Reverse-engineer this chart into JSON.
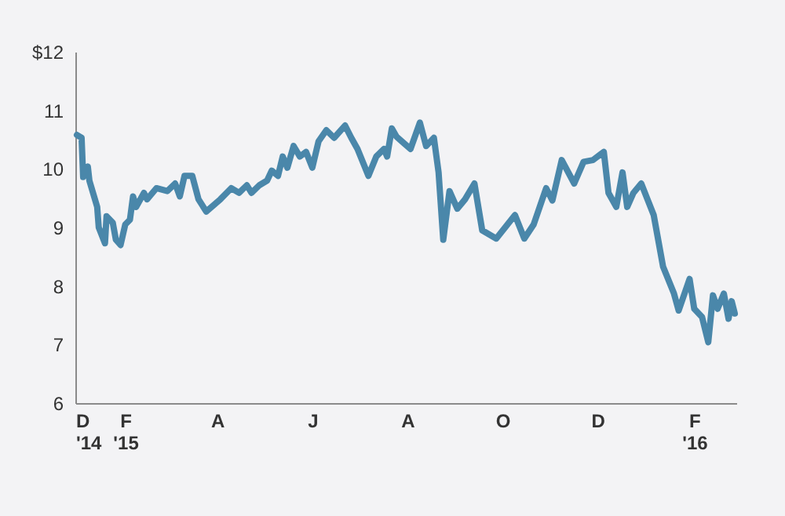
{
  "chart_data": {
    "type": "line",
    "x": [
      "2015-01-01",
      "2015-01-04",
      "2015-01-05",
      "2015-01-08",
      "2015-01-09",
      "2015-01-14",
      "2015-01-15",
      "2015-01-19",
      "2015-01-20",
      "2015-01-24",
      "2015-01-26",
      "2015-01-29",
      "2015-02-01",
      "2015-02-04",
      "2015-02-06",
      "2015-02-08",
      "2015-02-13",
      "2015-02-15",
      "2015-02-21",
      "2015-02-28",
      "2015-03-05",
      "2015-03-08",
      "2015-03-11",
      "2015-03-16",
      "2015-03-20",
      "2015-03-25",
      "2015-04-03",
      "2015-04-10",
      "2015-04-15",
      "2015-04-20",
      "2015-04-23",
      "2015-04-28",
      "2015-05-03",
      "2015-05-06",
      "2015-05-10",
      "2015-05-13",
      "2015-05-16",
      "2015-05-20",
      "2015-05-24",
      "2015-05-28",
      "2015-06-01",
      "2015-06-05",
      "2015-06-10",
      "2015-06-15",
      "2015-06-22",
      "2015-06-26",
      "2015-06-30",
      "2015-07-07",
      "2015-07-12",
      "2015-07-17",
      "2015-07-19",
      "2015-07-22",
      "2015-07-25",
      "2015-08-03",
      "2015-08-09",
      "2015-08-13",
      "2015-08-18",
      "2015-08-21",
      "2015-08-24",
      "2015-08-28",
      "2015-09-02",
      "2015-09-07",
      "2015-09-13",
      "2015-09-18",
      "2015-09-27",
      "2015-10-09",
      "2015-10-15",
      "2015-10-21",
      "2015-10-29",
      "2015-11-02",
      "2015-11-08",
      "2015-11-16",
      "2015-11-22",
      "2015-11-28",
      "2015-12-05",
      "2015-12-08",
      "2015-12-13",
      "2015-12-17",
      "2015-12-20",
      "2015-12-24",
      "2015-12-29",
      "2016-01-06",
      "2016-01-12",
      "2016-01-19",
      "2016-01-22",
      "2016-01-29",
      "2016-02-01",
      "2016-02-06",
      "2016-02-10",
      "2016-02-13",
      "2016-02-16",
      "2016-02-20",
      "2016-02-23",
      "2016-02-25",
      "2016-02-27"
    ],
    "series": [
      {
        "color": "#4a87aa",
        "values": [
          10.58,
          10.53,
          9.86,
          10.04,
          9.8,
          9.35,
          9.0,
          8.73,
          9.19,
          9.08,
          8.79,
          8.7,
          9.05,
          9.13,
          9.53,
          9.35,
          9.59,
          9.48,
          9.67,
          9.62,
          9.75,
          9.53,
          9.88,
          9.88,
          9.48,
          9.27,
          9.48,
          9.67,
          9.59,
          9.72,
          9.59,
          9.72,
          9.8,
          9.97,
          9.88,
          10.21,
          10.02,
          10.39,
          10.21,
          10.29,
          10.02,
          10.47,
          10.66,
          10.53,
          10.74,
          10.53,
          10.34,
          9.88,
          10.21,
          10.34,
          10.21,
          10.69,
          10.55,
          10.34,
          10.79,
          10.39,
          10.53,
          9.94,
          8.79,
          9.62,
          9.32,
          9.48,
          9.75,
          8.95,
          8.81,
          9.21,
          8.81,
          9.05,
          9.67,
          9.46,
          10.15,
          9.75,
          10.12,
          10.15,
          10.29,
          9.59,
          9.35,
          9.94,
          9.35,
          9.59,
          9.75,
          9.21,
          8.33,
          7.87,
          7.58,
          8.12,
          7.61,
          7.47,
          7.04,
          7.84,
          7.61,
          7.87,
          7.44,
          7.74,
          7.53
        ]
      }
    ],
    "xlim": [
      "2014-12-31",
      "2016-02-28"
    ],
    "xticks": [
      {
        "value": "2014-12-31",
        "label": "D\n'14"
      },
      {
        "value": "2015-02-01",
        "label": "F\n'15"
      },
      {
        "value": "2015-04-01",
        "label": "A"
      },
      {
        "value": "2015-06-01",
        "label": "J"
      },
      {
        "value": "2015-08-01",
        "label": "A"
      },
      {
        "value": "2015-10-01",
        "label": "O"
      },
      {
        "value": "2015-12-01",
        "label": "D"
      },
      {
        "value": "2016-02-01",
        "label": "F\n'16"
      }
    ],
    "ylim": [
      6,
      12
    ],
    "yticks": [
      6,
      7,
      8,
      9,
      10,
      11,
      {
        "value": 12,
        "label": "$12"
      }
    ],
    "grid": false,
    "marker": "none",
    "line_style": "solid"
  }
}
